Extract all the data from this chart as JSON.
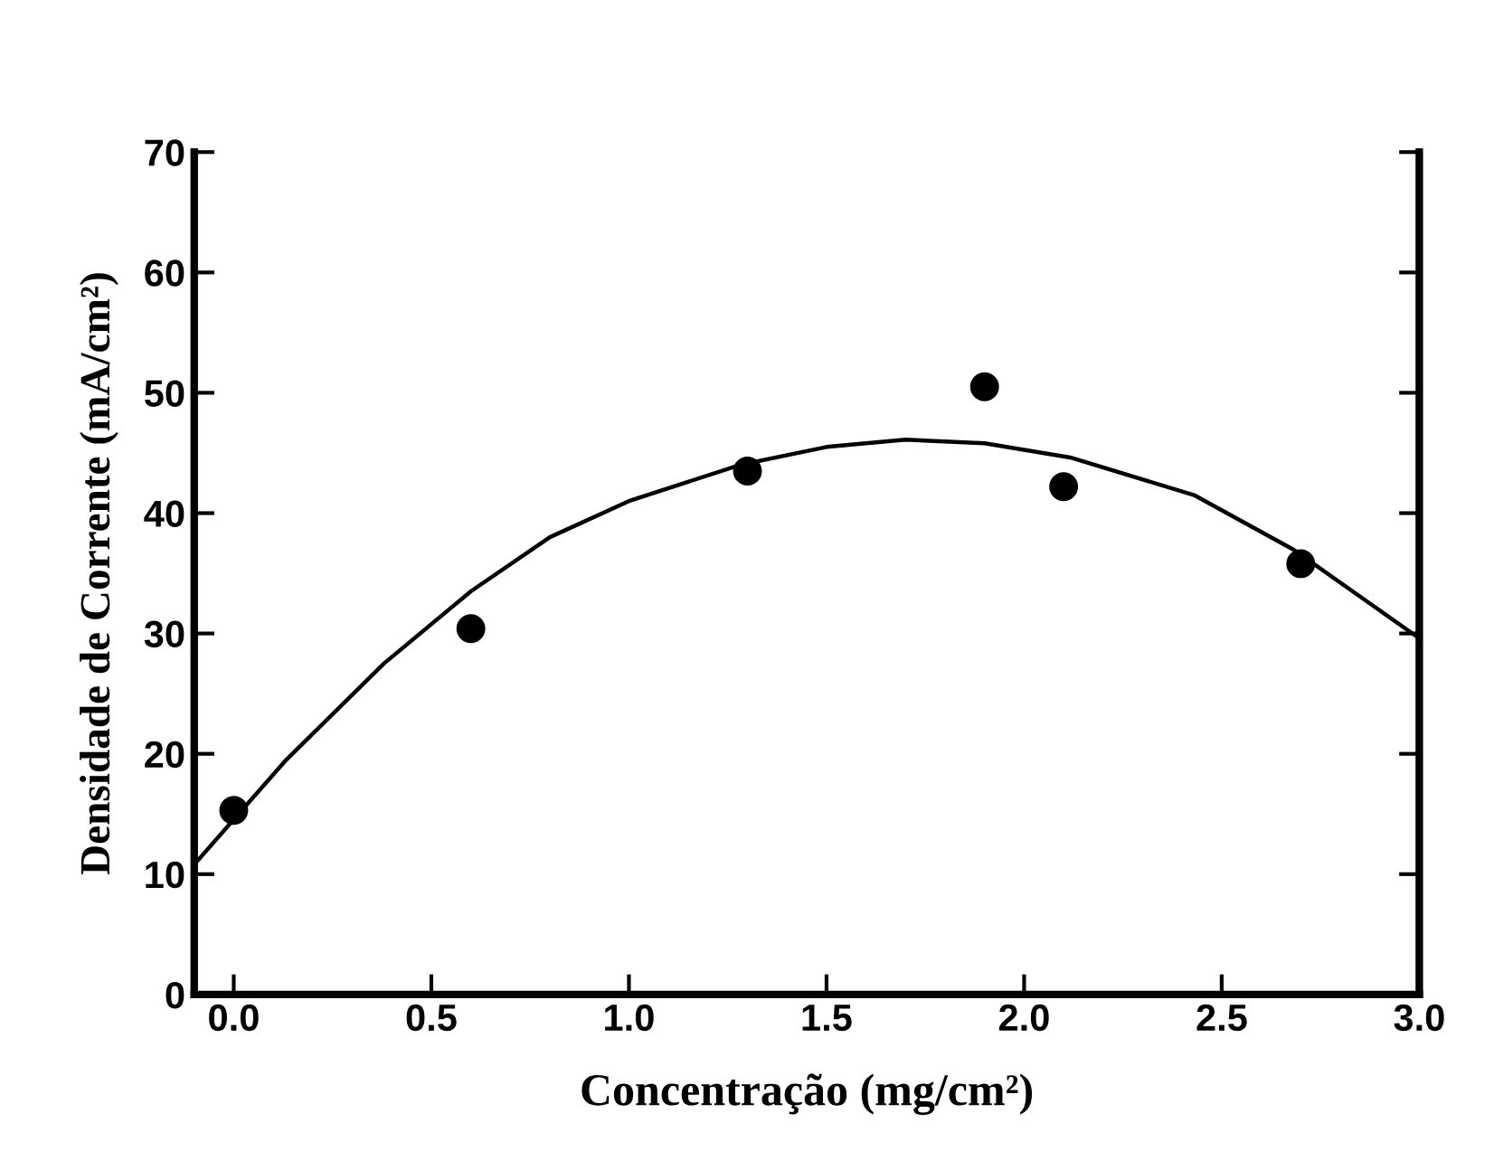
{
  "chart_data": {
    "type": "scatter",
    "xlabel": "Concentração (mg/cm²)",
    "ylabel": "Densidade de Corrente (mA/cm²)",
    "xlim": [
      -0.1,
      3.0
    ],
    "ylim": [
      0,
      70
    ],
    "xticks": [
      {
        "value": 0,
        "label": "0.0"
      },
      0.5,
      {
        "value": 1,
        "label": "1.0"
      },
      1.5,
      {
        "value": 2,
        "label": "2.0"
      },
      2.5,
      {
        "value": 3,
        "label": "3.0"
      }
    ],
    "yticks": [
      0,
      10,
      20,
      30,
      40,
      50,
      60,
      70
    ],
    "grid": false,
    "series": [
      {
        "color": "#000000",
        "marker": "circle",
        "x": [
          0,
          0.6,
          1.3,
          1.9,
          2.1,
          2.7
        ],
        "values": [
          15.3,
          30.4,
          43.5,
          50.5,
          42.2,
          35.8
        ]
      },
      {
        "type": "line",
        "color": "#000000",
        "marker": "none",
        "x": [
          -0.1,
          0.13,
          0.38,
          0.6,
          0.8,
          1.0,
          1.28,
          1.5,
          1.7,
          1.9,
          2.12,
          2.43,
          2.68,
          3.0
        ],
        "values": [
          10.8,
          19.4,
          27.5,
          33.5,
          38.0,
          41.0,
          44.0,
          45.5,
          46.1,
          45.8,
          44.6,
          41.5,
          37.0,
          29.6
        ]
      }
    ]
  }
}
